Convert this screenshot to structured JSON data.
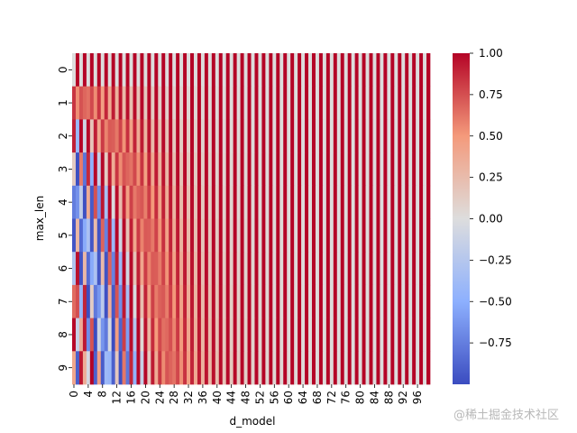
{
  "chart_data": {
    "type": "heatmap",
    "title": "",
    "xlabel": "d_model",
    "ylabel": "max_len",
    "rows": 10,
    "cols": 100,
    "y_ticks": [
      "0",
      "1",
      "2",
      "3",
      "4",
      "5",
      "6",
      "7",
      "8",
      "9"
    ],
    "x_ticks": [
      "0",
      "4",
      "8",
      "12",
      "16",
      "20",
      "24",
      "28",
      "32",
      "36",
      "40",
      "44",
      "48",
      "52",
      "56",
      "60",
      "64",
      "68",
      "72",
      "76",
      "80",
      "84",
      "88",
      "92",
      "96"
    ],
    "x_tick_positions": [
      0,
      4,
      8,
      12,
      16,
      20,
      24,
      28,
      32,
      36,
      40,
      44,
      48,
      52,
      56,
      60,
      64,
      68,
      72,
      76,
      80,
      84,
      88,
      92,
      96
    ],
    "colorbar": {
      "ticks": [
        "1.00",
        "0.75",
        "0.50",
        "0.25",
        "0.00",
        "−0.25",
        "−0.50",
        "−0.75"
      ],
      "tick_values": [
        1.0,
        0.75,
        0.5,
        0.25,
        0.0,
        -0.25,
        -0.5,
        -0.75
      ],
      "vmin": -1.0,
      "vmax": 1.0,
      "colormap": "coolwarm"
    },
    "values_formula": "PE[pos][i] = sin(pos / 10000^(i/100)) for even i, cos(pos / 10000^((i-1)/100)) for odd i"
  },
  "watermark": "@稀土掘金技术社区"
}
